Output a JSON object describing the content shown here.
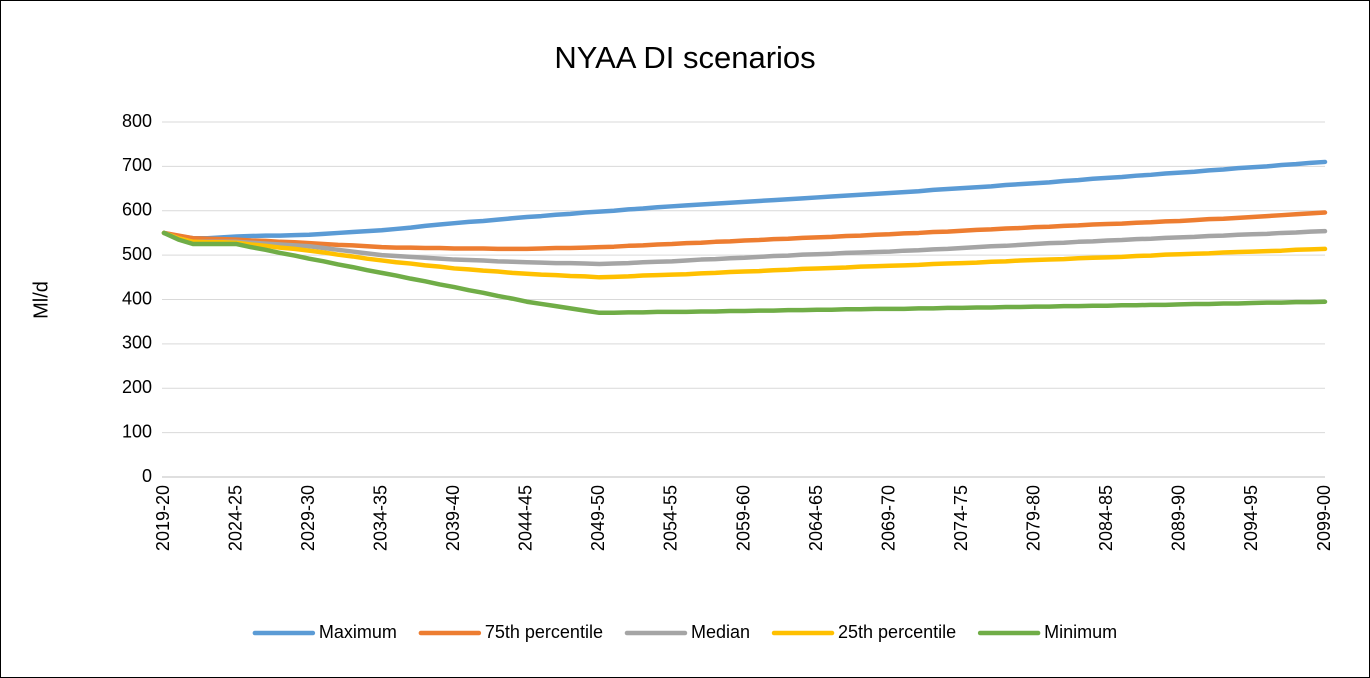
{
  "chart_data": {
    "type": "line",
    "title": "NYAA DI scenarios",
    "y_label": "Ml/d",
    "categories": [
      "2019-20",
      null,
      null,
      null,
      null,
      "2024-25",
      null,
      null,
      null,
      null,
      "2029-30",
      null,
      null,
      null,
      null,
      "2034-35",
      null,
      null,
      null,
      null,
      "2039-40",
      null,
      null,
      null,
      null,
      "2044-45",
      null,
      null,
      null,
      null,
      "2049-50",
      null,
      null,
      null,
      null,
      "2054-55",
      null,
      null,
      null,
      null,
      "2059-60",
      null,
      null,
      null,
      null,
      "2064-65",
      null,
      null,
      null,
      null,
      "2069-70",
      null,
      null,
      null,
      null,
      "2074-75",
      null,
      null,
      null,
      null,
      "2079-80",
      null,
      null,
      null,
      null,
      "2084-85",
      null,
      null,
      null,
      null,
      "2089-90",
      null,
      null,
      null,
      null,
      "2094-95",
      null,
      null,
      null,
      null,
      "2099-00"
    ],
    "series": [
      {
        "name": "Maximum",
        "color": "#5b9bd5",
        "values": [
          550,
          543,
          538,
          538,
          540,
          542,
          543,
          544,
          544,
          545,
          546,
          548,
          550,
          552,
          554,
          556,
          559,
          562,
          566,
          569,
          572,
          575,
          577,
          580,
          583,
          586,
          588,
          591,
          593,
          596,
          598,
          600,
          603,
          605,
          608,
          610,
          612,
          614,
          616,
          618,
          620,
          622,
          624,
          626,
          628,
          630,
          632,
          634,
          636,
          638,
          640,
          642,
          644,
          647,
          649,
          651,
          653,
          655,
          658,
          660,
          662,
          664,
          667,
          669,
          672,
          674,
          676,
          679,
          681,
          684,
          686,
          688,
          691,
          693,
          696,
          698,
          700,
          703,
          705,
          708,
          710
        ]
      },
      {
        "name": "75th percentile",
        "color": "#ed7d31",
        "values": [
          550,
          544,
          538,
          537,
          536,
          535,
          533,
          532,
          530,
          529,
          527,
          525,
          523,
          522,
          520,
          518,
          517,
          517,
          516,
          516,
          515,
          515,
          515,
          514,
          514,
          514,
          515,
          516,
          516,
          517,
          518,
          519,
          521,
          522,
          524,
          525,
          527,
          528,
          530,
          531,
          533,
          534,
          536,
          537,
          539,
          540,
          541,
          543,
          544,
          546,
          547,
          549,
          550,
          552,
          553,
          555,
          557,
          558,
          560,
          561,
          563,
          564,
          566,
          567,
          569,
          570,
          571,
          573,
          574,
          576,
          577,
          579,
          581,
          582,
          584,
          586,
          588,
          590,
          592,
          594,
          596
        ]
      },
      {
        "name": "Median",
        "color": "#a5a5a5",
        "values": [
          550,
          538,
          530,
          530,
          530,
          530,
          528,
          526,
          524,
          522,
          520,
          516,
          512,
          508,
          504,
          500,
          498,
          496,
          494,
          492,
          490,
          489,
          488,
          486,
          485,
          484,
          483,
          482,
          482,
          481,
          480,
          481,
          482,
          484,
          485,
          486,
          488,
          490,
          491,
          493,
          494,
          496,
          498,
          499,
          501,
          502,
          503,
          505,
          506,
          507,
          508,
          510,
          511,
          513,
          514,
          516,
          518,
          520,
          521,
          523,
          525,
          527,
          528,
          530,
          531,
          533,
          534,
          536,
          537,
          539,
          540,
          541,
          543,
          544,
          546,
          547,
          548,
          550,
          551,
          553,
          554
        ]
      },
      {
        "name": "25th percentile",
        "color": "#ffc000",
        "values": [
          550,
          538,
          530,
          529,
          529,
          528,
          524,
          521,
          517,
          514,
          510,
          506,
          501,
          497,
          492,
          488,
          484,
          481,
          477,
          474,
          470,
          468,
          465,
          463,
          460,
          458,
          456,
          455,
          453,
          452,
          450,
          451,
          452,
          454,
          455,
          456,
          457,
          459,
          460,
          462,
          463,
          464,
          466,
          467,
          469,
          470,
          471,
          472,
          474,
          475,
          476,
          477,
          478,
          480,
          481,
          482,
          483,
          485,
          486,
          488,
          489,
          490,
          491,
          493,
          494,
          495,
          496,
          498,
          499,
          501,
          502,
          503,
          504,
          506,
          507,
          508,
          509,
          510,
          512,
          513,
          514
        ]
      },
      {
        "name": "Minimum",
        "color": "#70ad47",
        "values": [
          550,
          535,
          525,
          525,
          525,
          525,
          518,
          512,
          505,
          499,
          492,
          486,
          479,
          473,
          466,
          460,
          454,
          447,
          441,
          434,
          428,
          421,
          415,
          408,
          402,
          395,
          390,
          385,
          380,
          375,
          370,
          370,
          371,
          371,
          372,
          372,
          372,
          373,
          373,
          374,
          374,
          375,
          375,
          376,
          376,
          377,
          377,
          378,
          378,
          379,
          379,
          379,
          380,
          380,
          381,
          381,
          382,
          382,
          383,
          383,
          384,
          384,
          385,
          385,
          386,
          386,
          387,
          387,
          388,
          388,
          389,
          390,
          390,
          391,
          391,
          392,
          393,
          393,
          394,
          394,
          395
        ]
      }
    ],
    "ylim": [
      0,
      800
    ],
    "yticks": [
      0,
      100,
      200,
      300,
      400,
      500,
      600,
      700,
      800
    ],
    "grid": true,
    "legend": "bottom"
  }
}
